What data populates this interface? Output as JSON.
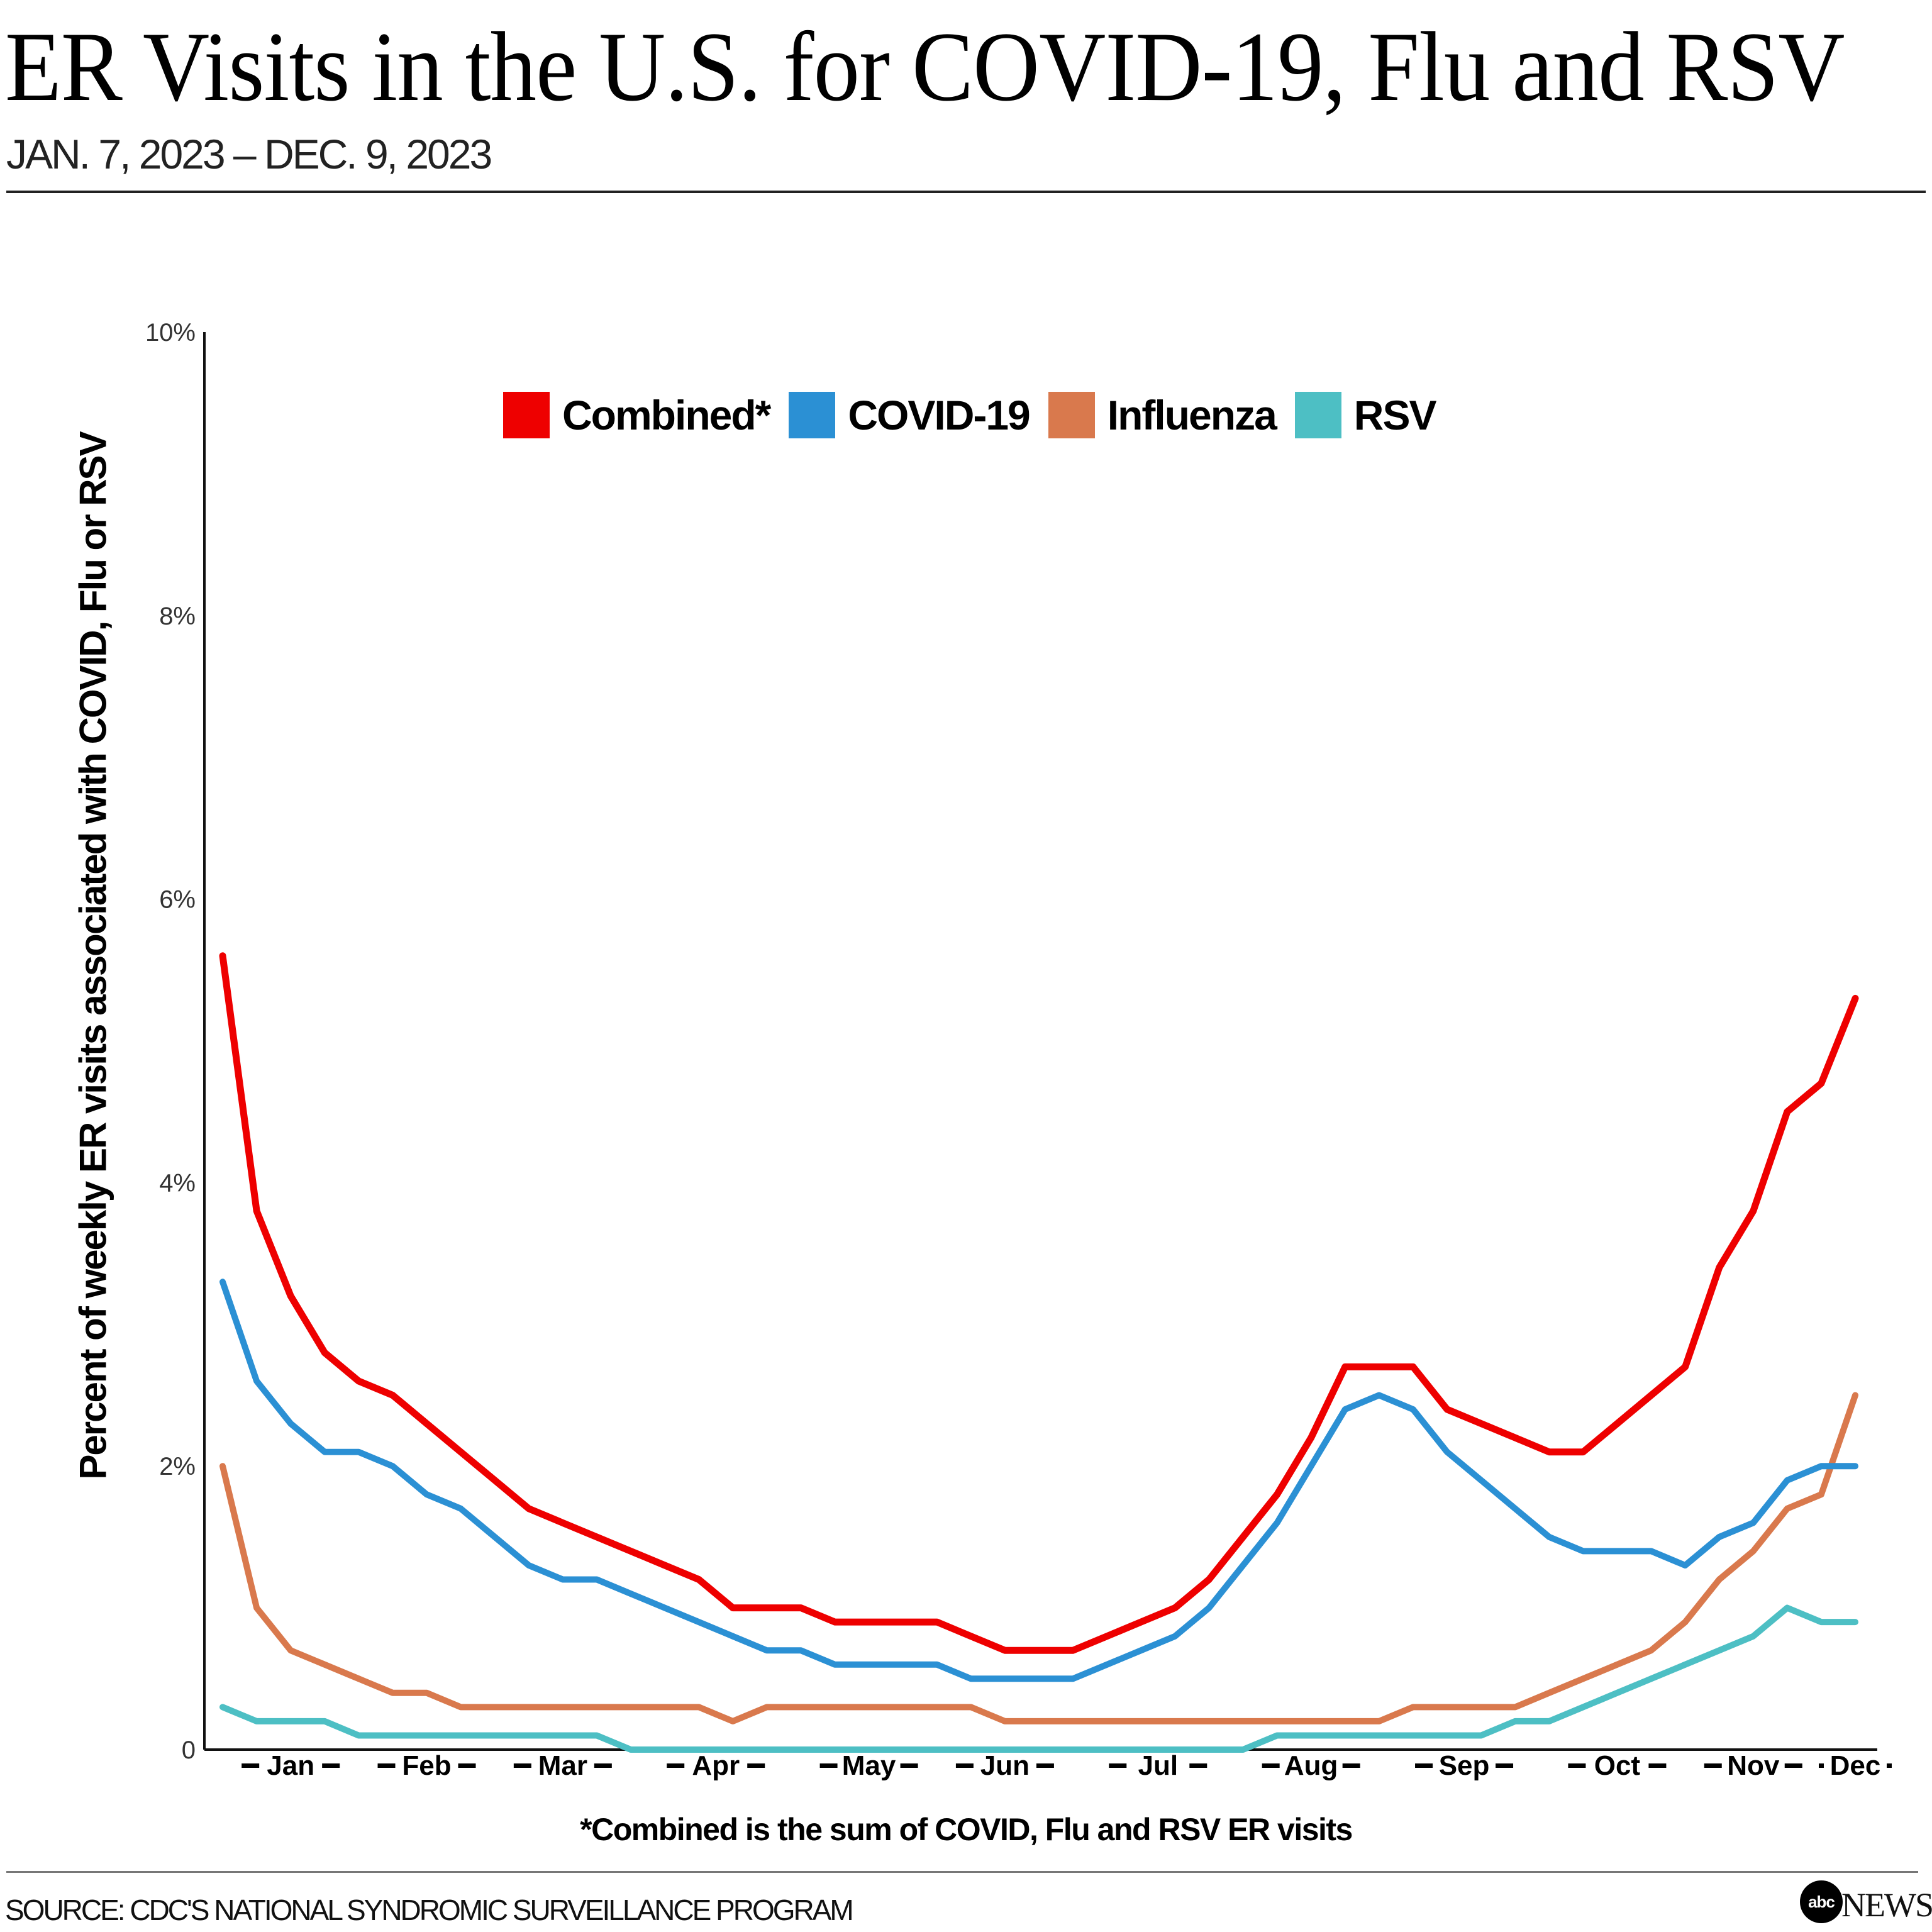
{
  "header": {
    "title": "ER Visits in the U.S. for COVID-19, Flu and RSV",
    "subtitle": "JAN. 7, 2023 – DEC. 9, 2023"
  },
  "footer": {
    "footnote": "*Combined is the sum of COVID, Flu and RSV ER visits",
    "source": "SOURCE: CDC'S NATIONAL SYNDROMIC SURVEILLANCE PROGRAM",
    "logo_mark": "abc",
    "logo_text": "NEWS"
  },
  "chart_data": {
    "type": "line",
    "title": "ER Visits in the U.S. for COVID-19, Flu and RSV",
    "subtitle": "JAN. 7, 2023 – DEC. 9, 2023",
    "xlabel": "",
    "ylabel": "Percent of weekly ER visits associated with COVID, Flu or RSV",
    "ylim": [
      0,
      10
    ],
    "yticks": [
      {
        "value": 0,
        "label": "0"
      },
      {
        "value": 2,
        "label": "2%"
      },
      {
        "value": 4,
        "label": "4%"
      },
      {
        "value": 6,
        "label": "6%"
      },
      {
        "value": 8,
        "label": "8%"
      },
      {
        "value": 10,
        "label": "10%"
      }
    ],
    "xticks": [
      {
        "week": 2,
        "label": "Jan"
      },
      {
        "week": 6,
        "label": "Feb"
      },
      {
        "week": 10,
        "label": "Mar"
      },
      {
        "week": 14.5,
        "label": "Apr"
      },
      {
        "week": 19,
        "label": "May"
      },
      {
        "week": 23,
        "label": "Jun"
      },
      {
        "week": 27.5,
        "label": "Jul"
      },
      {
        "week": 32,
        "label": "Aug"
      },
      {
        "week": 36.5,
        "label": "Sep"
      },
      {
        "week": 41,
        "label": "Oct"
      },
      {
        "week": 45,
        "label": "Nov"
      },
      {
        "week": 48,
        "label": "Dec"
      }
    ],
    "x_range_weeks": [
      0,
      48
    ],
    "grid": false,
    "legend_position": "top-center",
    "series": [
      {
        "name": "Combined*",
        "color": "#ee0000",
        "values": [
          5.6,
          3.8,
          3.2,
          2.8,
          2.6,
          2.5,
          2.3,
          2.1,
          1.9,
          1.7,
          1.6,
          1.5,
          1.4,
          1.3,
          1.2,
          1.0,
          1.0,
          1.0,
          0.9,
          0.9,
          0.9,
          0.9,
          0.8,
          0.7,
          0.7,
          0.7,
          0.8,
          0.9,
          1.0,
          1.2,
          1.5,
          1.8,
          2.2,
          2.7,
          2.7,
          2.7,
          2.4,
          2.3,
          2.2,
          2.1,
          2.1,
          2.3,
          2.5,
          2.7,
          3.4,
          3.8,
          4.5,
          4.7,
          5.3
        ]
      },
      {
        "name": "COVID-19",
        "color": "#2b90d4",
        "values": [
          3.3,
          2.6,
          2.3,
          2.1,
          2.1,
          2.0,
          1.8,
          1.7,
          1.5,
          1.3,
          1.2,
          1.2,
          1.1,
          1.0,
          0.9,
          0.8,
          0.7,
          0.7,
          0.6,
          0.6,
          0.6,
          0.6,
          0.5,
          0.5,
          0.5,
          0.5,
          0.6,
          0.7,
          0.8,
          1.0,
          1.3,
          1.6,
          2.0,
          2.4,
          2.5,
          2.4,
          2.1,
          1.9,
          1.7,
          1.5,
          1.4,
          1.4,
          1.4,
          1.3,
          1.5,
          1.6,
          1.9,
          2.0,
          2.0
        ]
      },
      {
        "name": "Influenza",
        "color": "#d9794d",
        "values": [
          2.0,
          1.0,
          0.7,
          0.6,
          0.5,
          0.4,
          0.4,
          0.3,
          0.3,
          0.3,
          0.3,
          0.3,
          0.3,
          0.3,
          0.3,
          0.2,
          0.3,
          0.3,
          0.3,
          0.3,
          0.3,
          0.3,
          0.3,
          0.2,
          0.2,
          0.2,
          0.2,
          0.2,
          0.2,
          0.2,
          0.2,
          0.2,
          0.2,
          0.2,
          0.2,
          0.3,
          0.3,
          0.3,
          0.3,
          0.4,
          0.5,
          0.6,
          0.7,
          0.9,
          1.2,
          1.4,
          1.7,
          1.8,
          2.5
        ]
      },
      {
        "name": "RSV",
        "color": "#4dbfc4",
        "values": [
          0.3,
          0.2,
          0.2,
          0.2,
          0.1,
          0.1,
          0.1,
          0.1,
          0.1,
          0.1,
          0.1,
          0.1,
          0.0,
          0.0,
          0.0,
          0.0,
          0.0,
          0.0,
          0.0,
          0.0,
          0.0,
          0.0,
          0.0,
          0.0,
          0.0,
          0.0,
          0.0,
          0.0,
          0.0,
          0.0,
          0.0,
          0.1,
          0.1,
          0.1,
          0.1,
          0.1,
          0.1,
          0.1,
          0.2,
          0.2,
          0.3,
          0.4,
          0.5,
          0.6,
          0.7,
          0.8,
          1.0,
          0.9,
          0.9
        ]
      }
    ]
  }
}
